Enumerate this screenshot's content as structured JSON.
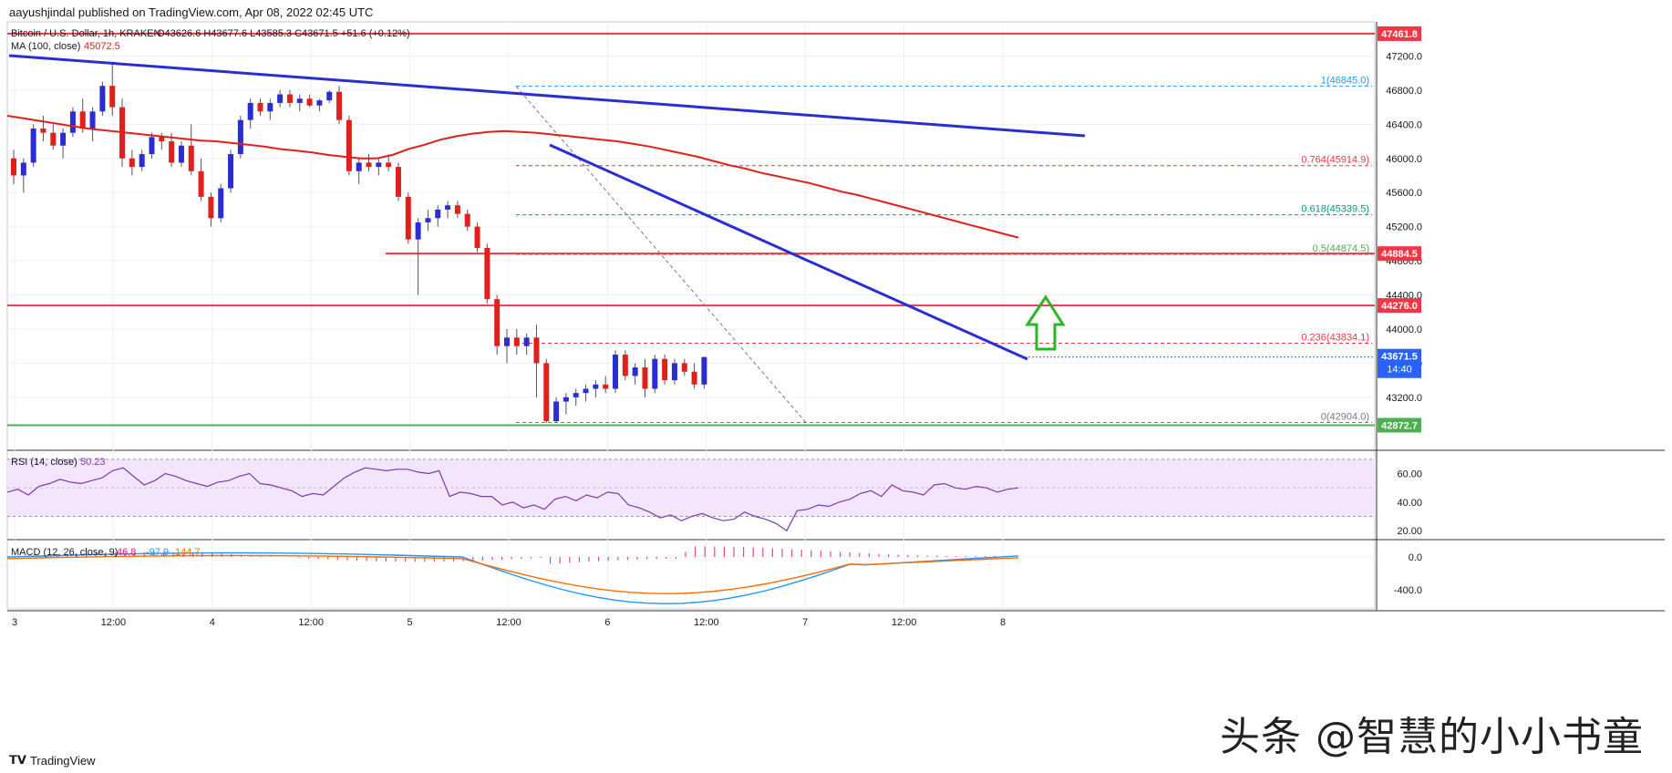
{
  "header": {
    "text": "aayushjindal published on TradingView.com, Apr 08, 2022 02:45 UTC"
  },
  "footer": {
    "brand": "TradingView"
  },
  "watermark": {
    "text": "头条 @智慧的小小书童"
  },
  "chart_data": {
    "type": "candlestick",
    "title": "Bitcoin / U.S. Dollar, 1h, KRAKEN",
    "ohlc_label": "O43626.6 H43677.6 L43585.3 C43671.5 +51.6 (+0.12%)",
    "ma_label": "MA (100, close)",
    "ma_value": "45072.5",
    "currency": "USD",
    "price_axis": {
      "min": 42600,
      "max": 47600,
      "ticks": [
        47200.0,
        46800.0,
        46400.0,
        46000.0,
        45600.0,
        45200.0,
        44800.0,
        44400.0,
        44000.0,
        43600.0,
        43200.0
      ],
      "tick_labels": [
        "47200.0",
        "46800.0",
        "46400.0",
        "46000.0",
        "45600.0",
        "45200.0",
        "44800.0",
        "44400.0",
        "44000.0",
        "43600.0",
        "43200.0"
      ]
    },
    "time_axis": {
      "labels": [
        "3",
        "12:00",
        "4",
        "12:00",
        "5",
        "12:00",
        "6",
        "12:00",
        "7",
        "12:00",
        "8"
      ]
    },
    "horizontal_levels": [
      {
        "price": 47461.8,
        "label": "47461.8",
        "color": "#f23645"
      },
      {
        "price": 44884.5,
        "label": "44884.5",
        "color": "#f23645"
      },
      {
        "price": 44276.0,
        "label": "44276.0",
        "color": "#f23645"
      },
      {
        "price": 42872.7,
        "label": "42872.7",
        "color": "#4caf50"
      }
    ],
    "last_price": {
      "price": 43671.5,
      "label": "43671.5",
      "countdown": "14:40",
      "color": "#2962ff"
    },
    "fib_levels": [
      {
        "ratio": "1",
        "price": 46845.0,
        "label": "1(46845.0)",
        "color": "#2196f3"
      },
      {
        "ratio": "0.764",
        "price": 45914.9,
        "label": "0.764(45914.9)",
        "color": "#f23645"
      },
      {
        "ratio": "0.618",
        "price": 45339.5,
        "label": "0.618(45339.5)",
        "color": "#089981"
      },
      {
        "ratio": "0.5",
        "price": 44874.5,
        "label": "0.5(44874.5)",
        "color": "#4caf50"
      },
      {
        "ratio": "0.236",
        "price": 43834.1,
        "label": "0.236(43834.1)",
        "color": "#f23645"
      },
      {
        "ratio": "0",
        "price": 42904.0,
        "label": "0(42904.0)",
        "color": "#787b86"
      }
    ],
    "ma_points": [
      46500,
      46470,
      46440,
      46410,
      46380,
      46350,
      46330,
      46310,
      46290,
      46270,
      46250,
      46230,
      46210,
      46200,
      46180,
      46160,
      46140,
      46110,
      46090,
      46070,
      46040,
      46020,
      46000,
      46000,
      46040,
      46110,
      46160,
      46220,
      46260,
      46290,
      46310,
      46320,
      46310,
      46300,
      46280,
      46260,
      46240,
      46220,
      46200,
      46170,
      46140,
      46100,
      46060,
      46020,
      45970,
      45920,
      45880,
      45830,
      45790,
      45750,
      45710,
      45660,
      45610,
      45570,
      45520,
      45470,
      45420,
      45370,
      45320,
      45270,
      45220,
      45170,
      45120,
      45072
    ],
    "candles": [
      [
        46000,
        46100,
        45700,
        45800
      ],
      [
        45800,
        46000,
        45600,
        45950
      ],
      [
        45950,
        46400,
        45900,
        46350
      ],
      [
        46350,
        46500,
        46200,
        46300
      ],
      [
        46300,
        46400,
        46100,
        46150
      ],
      [
        46150,
        46350,
        46000,
        46300
      ],
      [
        46300,
        46600,
        46250,
        46550
      ],
      [
        46550,
        46700,
        46300,
        46350
      ],
      [
        46350,
        46600,
        46200,
        46550
      ],
      [
        46550,
        46900,
        46500,
        46850
      ],
      [
        46850,
        47100,
        46500,
        46600
      ],
      [
        46600,
        46700,
        45900,
        46000
      ],
      [
        46000,
        46100,
        45800,
        45900
      ],
      [
        45900,
        46100,
        45850,
        46050
      ],
      [
        46050,
        46300,
        46000,
        46250
      ],
      [
        46250,
        46300,
        46100,
        46200
      ],
      [
        46200,
        46300,
        45900,
        45950
      ],
      [
        45950,
        46200,
        45900,
        46150
      ],
      [
        46150,
        46400,
        45800,
        45850
      ],
      [
        45850,
        46000,
        45500,
        45550
      ],
      [
        45550,
        45600,
        45200,
        45300
      ],
      [
        45300,
        45700,
        45250,
        45650
      ],
      [
        45650,
        46100,
        45600,
        46050
      ],
      [
        46050,
        46500,
        46000,
        46450
      ],
      [
        46450,
        46700,
        46350,
        46650
      ],
      [
        46650,
        46700,
        46500,
        46550
      ],
      [
        46550,
        46700,
        46450,
        46650
      ],
      [
        46650,
        46800,
        46600,
        46750
      ],
      [
        46750,
        46800,
        46600,
        46650
      ],
      [
        46650,
        46750,
        46550,
        46700
      ],
      [
        46700,
        46750,
        46600,
        46620
      ],
      [
        46620,
        46700,
        46550,
        46680
      ],
      [
        46680,
        46800,
        46650,
        46780
      ],
      [
        46780,
        46850,
        46400,
        46450
      ],
      [
        46450,
        46500,
        45800,
        45850
      ],
      [
        45850,
        46000,
        45700,
        45950
      ],
      [
        45950,
        46050,
        45850,
        45900
      ],
      [
        45900,
        46000,
        45800,
        45950
      ],
      [
        45950,
        46050,
        45850,
        45900
      ],
      [
        45900,
        45950,
        45500,
        45550
      ],
      [
        45550,
        45600,
        45000,
        45050
      ],
      [
        45050,
        45300,
        44400,
        45250
      ],
      [
        45250,
        45400,
        45150,
        45300
      ],
      [
        45300,
        45450,
        45200,
        45400
      ],
      [
        45400,
        45500,
        45300,
        45450
      ],
      [
        45450,
        45500,
        45300,
        45350
      ],
      [
        45350,
        45400,
        45150,
        45200
      ],
      [
        45200,
        45250,
        44900,
        44950
      ],
      [
        44950,
        45000,
        44300,
        44350
      ],
      [
        44350,
        44400,
        43700,
        43800
      ],
      [
        43800,
        44000,
        43600,
        43900
      ],
      [
        43900,
        44000,
        43700,
        43800
      ],
      [
        43800,
        43950,
        43700,
        43900
      ],
      [
        43900,
        44050,
        43200,
        43600
      ],
      [
        43600,
        43650,
        42900,
        42920
      ],
      [
        42920,
        43200,
        42900,
        43150
      ],
      [
        43150,
        43250,
        43000,
        43200
      ],
      [
        43200,
        43300,
        43100,
        43250
      ],
      [
        43250,
        43350,
        43150,
        43300
      ],
      [
        43300,
        43400,
        43200,
        43350
      ],
      [
        43350,
        43450,
        43250,
        43300
      ],
      [
        43300,
        43750,
        43250,
        43700
      ],
      [
        43700,
        43750,
        43400,
        43450
      ],
      [
        43450,
        43600,
        43350,
        43550
      ],
      [
        43550,
        43650,
        43200,
        43300
      ],
      [
        43300,
        43700,
        43250,
        43650
      ],
      [
        43650,
        43700,
        43350,
        43400
      ],
      [
        43400,
        43650,
        43350,
        43600
      ],
      [
        43600,
        43650,
        43450,
        43500
      ],
      [
        43500,
        43600,
        43300,
        43350
      ],
      [
        43350,
        43677,
        43300,
        43671
      ]
    ],
    "trendlines": [
      {
        "x1": 10,
        "y1": 61,
        "x2": 1190,
        "y2": 149,
        "color": "#2a2ed1"
      },
      {
        "x1": 603,
        "y1": 159,
        "x2": 1127,
        "y2": 394,
        "color": "#2a2ed1"
      }
    ],
    "rsi": {
      "label": "RSI (14, close)",
      "value": "50.23",
      "ticks": [
        "60.00",
        "40.00",
        "20.00"
      ],
      "values": [
        47,
        49,
        45,
        51,
        53,
        56,
        54,
        53,
        55,
        57,
        62,
        64,
        58,
        52,
        55,
        60,
        58,
        55,
        53,
        51,
        54,
        55,
        58,
        60,
        53,
        52,
        50,
        48,
        44,
        46,
        45,
        51,
        57,
        61,
        64,
        63,
        62,
        63,
        63,
        61,
        60,
        62,
        44,
        47,
        46,
        44,
        44,
        38,
        40,
        36,
        38,
        35,
        42,
        44,
        41,
        45,
        43,
        47,
        46,
        38,
        36,
        33,
        29,
        31,
        27,
        30,
        32,
        29,
        27,
        28,
        33,
        30,
        28,
        25,
        20,
        34,
        35,
        38,
        37,
        40,
        42,
        46,
        48,
        44,
        52,
        48,
        47,
        45,
        52,
        53,
        50,
        49,
        51,
        50,
        47,
        49,
        50
      ]
    },
    "macd": {
      "label": "MACD (12, 26, close, 9)",
      "v1": "46.8",
      "v2": "-97.9",
      "v3": "144.7",
      "ticks": [
        "0.0",
        "-400.0"
      ]
    }
  }
}
